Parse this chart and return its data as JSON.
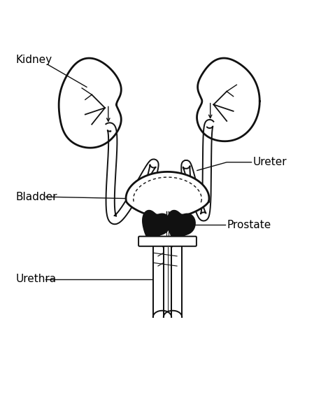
{
  "background_color": "#ffffff",
  "line_color": "#111111",
  "fill_black": "#111111",
  "fill_white": "#ffffff",
  "label_kidney": "Kidney",
  "label_ureter": "Ureter",
  "label_bladder": "Bladder",
  "label_prostate": "Prostate",
  "label_urethra": "Urethra",
  "label_fontsize": 11,
  "fig_width": 4.79,
  "fig_height": 6.0,
  "dpi": 100
}
